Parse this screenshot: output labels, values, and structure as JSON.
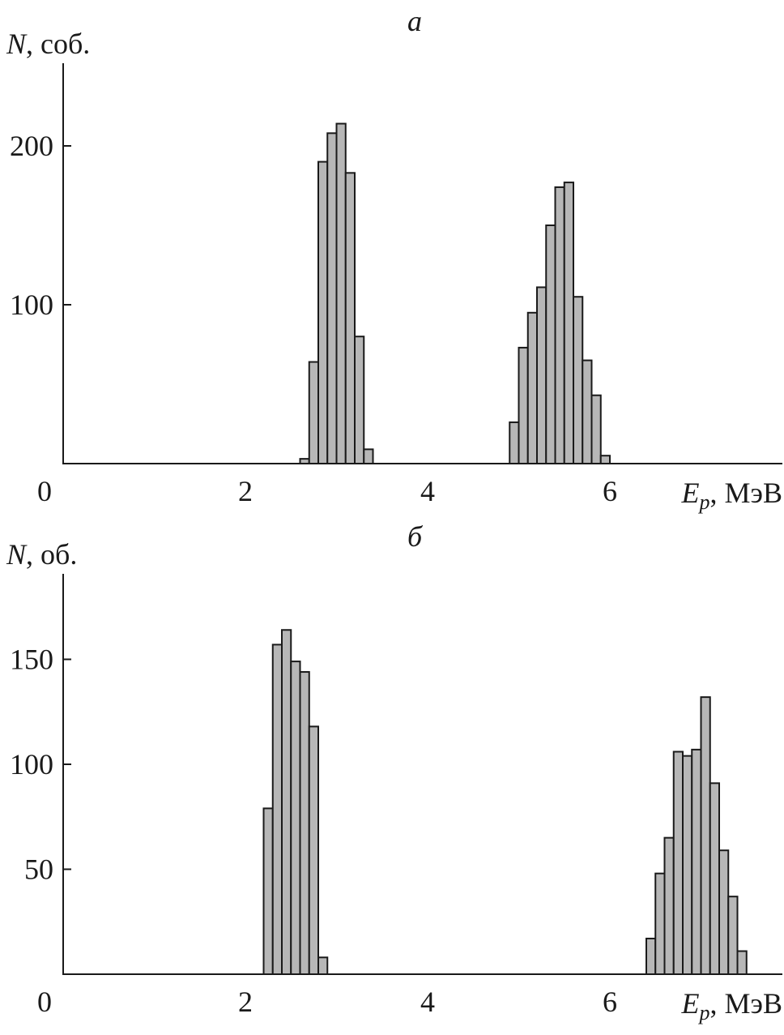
{
  "chart_data": [
    {
      "type": "bar",
      "panel_label": "а",
      "ylabel": "N, соб.",
      "ylabel_var": "N",
      "ylabel_unit": ", соб.",
      "xlabel_var": "E",
      "xlabel_sub": "p",
      "xlabel_unit": ", МэВ",
      "xlim": [
        0,
        7.9
      ],
      "ylim": [
        0,
        252
      ],
      "xticks": [
        0,
        2,
        4,
        6
      ],
      "yticks": [
        100,
        200
      ],
      "bin_width": 0.1,
      "bars": [
        {
          "x": 2.6,
          "y": 3
        },
        {
          "x": 2.7,
          "y": 64
        },
        {
          "x": 2.8,
          "y": 190
        },
        {
          "x": 2.9,
          "y": 208
        },
        {
          "x": 3.0,
          "y": 214
        },
        {
          "x": 3.1,
          "y": 183
        },
        {
          "x": 3.2,
          "y": 80
        },
        {
          "x": 3.3,
          "y": 9
        },
        {
          "x": 4.9,
          "y": 26
        },
        {
          "x": 5.0,
          "y": 73
        },
        {
          "x": 5.1,
          "y": 95
        },
        {
          "x": 5.2,
          "y": 111
        },
        {
          "x": 5.3,
          "y": 150
        },
        {
          "x": 5.4,
          "y": 174
        },
        {
          "x": 5.5,
          "y": 177
        },
        {
          "x": 5.6,
          "y": 105
        },
        {
          "x": 5.7,
          "y": 65
        },
        {
          "x": 5.8,
          "y": 43
        },
        {
          "x": 5.9,
          "y": 5
        }
      ]
    },
    {
      "type": "bar",
      "panel_label": "б",
      "ylabel": "N, об.",
      "ylabel_var": "N",
      "ylabel_unit": ", об.",
      "xlabel_var": "E",
      "xlabel_sub": "p",
      "xlabel_unit": ", МэВ",
      "xlim": [
        0,
        7.9
      ],
      "ylim": [
        0,
        190
      ],
      "xticks": [
        0,
        2,
        4,
        6
      ],
      "yticks": [
        50,
        100,
        150
      ],
      "bin_width": 0.1,
      "bars": [
        {
          "x": 2.2,
          "y": 79
        },
        {
          "x": 2.3,
          "y": 157
        },
        {
          "x": 2.4,
          "y": 164
        },
        {
          "x": 2.5,
          "y": 149
        },
        {
          "x": 2.6,
          "y": 144
        },
        {
          "x": 2.7,
          "y": 118
        },
        {
          "x": 2.8,
          "y": 8
        },
        {
          "x": 6.4,
          "y": 17
        },
        {
          "x": 6.5,
          "y": 48
        },
        {
          "x": 6.6,
          "y": 65
        },
        {
          "x": 6.7,
          "y": 106
        },
        {
          "x": 6.8,
          "y": 104
        },
        {
          "x": 6.9,
          "y": 107
        },
        {
          "x": 7.0,
          "y": 132
        },
        {
          "x": 7.1,
          "y": 91
        },
        {
          "x": 7.2,
          "y": 59
        },
        {
          "x": 7.3,
          "y": 37
        },
        {
          "x": 7.4,
          "y": 11
        }
      ]
    }
  ]
}
